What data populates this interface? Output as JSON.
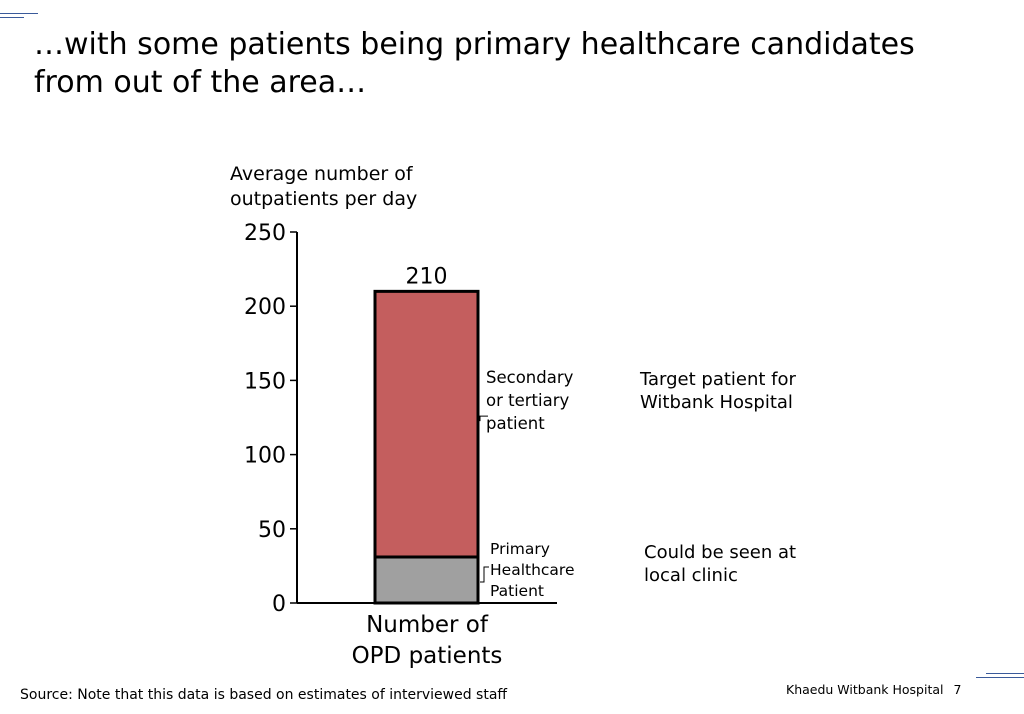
{
  "slide": {
    "title_line1": "…with some patients being primary healthcare candidates",
    "title_line2": "from out of the area…",
    "source": "Source: Note that this data is based on estimates of interviewed staff",
    "footer_org": "Khaedu Witbank Hospital",
    "page_number": "7"
  },
  "chart_data": {
    "type": "bar",
    "stacked": true,
    "categories": [
      "Number of OPD patients"
    ],
    "series": [
      {
        "name": "Primary Healthcare Patient",
        "values": [
          31
        ],
        "color": "#a0a0a0"
      },
      {
        "name": "Secondary or tertiary patient",
        "values": [
          179
        ],
        "color": "#c45e5e"
      }
    ],
    "total_label": "210",
    "ylabel_lines": [
      "Average number of",
      "outpatients per day"
    ],
    "xlabel_lines": [
      "Number of",
      "OPD patients"
    ],
    "ylim": [
      0,
      250
    ],
    "yticks": [
      0,
      50,
      100,
      150,
      200,
      250
    ],
    "segment_labels": [
      [
        "Primary",
        "Healthcare",
        "Patient"
      ],
      [
        "Secondary",
        "or tertiary",
        "patient"
      ]
    ],
    "grid": false
  },
  "annotations": {
    "primary_note_line1": "Could be seen at",
    "primary_note_line2": "local clinic",
    "secondary_note_line1": "Target patient for",
    "secondary_note_line2": "Witbank Hospital"
  }
}
